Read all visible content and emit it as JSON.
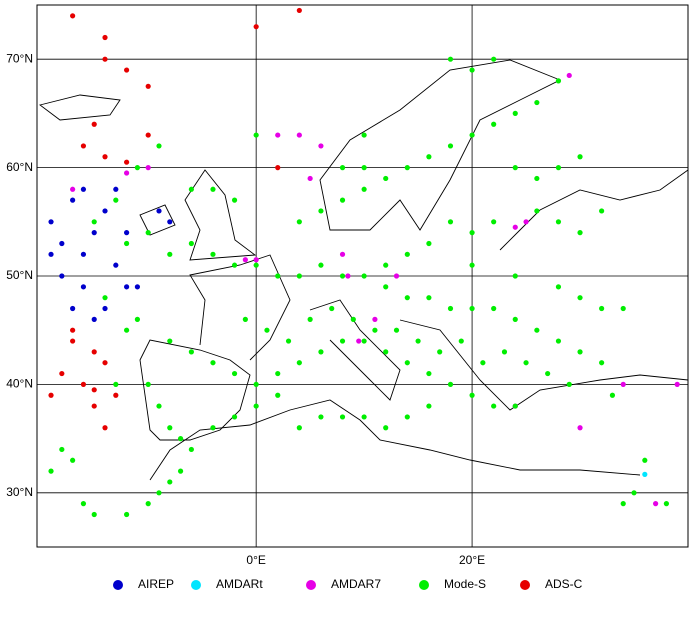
{
  "chart_data": {
    "type": "scatter",
    "xlim": [
      -20.3,
      40
    ],
    "ylim": [
      25,
      75
    ],
    "xticks": [
      {
        "value": 0,
        "label": "0°E"
      },
      {
        "value": 20,
        "label": "20°E"
      }
    ],
    "yticks": [
      {
        "value": 30,
        "label": "30°N"
      },
      {
        "value": 40,
        "label": "40°N"
      },
      {
        "value": 50,
        "label": "50°N"
      },
      {
        "value": 60,
        "label": "60°N"
      },
      {
        "value": 70,
        "label": "70°N"
      }
    ],
    "grid": true,
    "legend": "bottom",
    "series": [
      {
        "name": "AIREP",
        "color": "#0000cc",
        "x": [
          -19,
          -18,
          -17,
          -16,
          -15,
          -14,
          -13,
          -17,
          -15,
          -12,
          -19,
          -16,
          -13,
          -14,
          -11,
          -9,
          -8,
          -18,
          -16,
          -12
        ],
        "values": [
          55,
          53,
          57,
          52,
          54,
          56,
          51,
          47,
          46,
          49,
          52,
          58,
          58,
          47,
          49,
          56,
          55,
          50,
          49,
          54
        ]
      },
      {
        "name": "AMDARt",
        "color": "#00e5ff",
        "x": [
          36
        ],
        "values": [
          31.7
        ]
      },
      {
        "name": "AMDAR7",
        "color": "#e600e6",
        "x": [
          -1,
          0,
          8,
          8.5,
          13,
          24,
          25,
          29,
          24,
          9.5,
          -10,
          4,
          6,
          -17,
          -12,
          34,
          39,
          37,
          5,
          30,
          2,
          11
        ],
        "values": [
          51.5,
          51.5,
          52,
          50,
          50,
          54.5,
          55,
          68.5,
          38,
          44,
          60,
          63,
          62,
          58,
          59.5,
          40,
          40,
          29,
          59,
          36,
          63,
          46
        ]
      },
      {
        "name": "Mode-S",
        "color": "#00ee00",
        "x": [
          -15,
          -12,
          -10,
          -8,
          -6,
          -4,
          -2,
          0,
          2,
          4,
          6,
          8,
          10,
          12,
          14,
          16,
          18,
          20,
          22,
          24,
          26,
          28,
          30,
          32,
          -8,
          -6,
          -4,
          -2,
          0,
          2,
          4,
          6,
          8,
          10,
          12,
          14,
          16,
          18,
          20,
          22,
          24,
          -10,
          -9,
          -8,
          -7,
          -6,
          -7,
          -8,
          -9,
          -10,
          -12,
          -15,
          -16,
          -4,
          -2,
          0,
          2,
          4,
          6,
          8,
          10,
          12,
          14,
          16,
          4,
          6,
          8,
          10,
          12,
          14,
          16,
          18,
          20,
          22,
          24,
          26,
          28,
          18,
          20,
          22,
          10,
          0,
          -4,
          -2,
          -6,
          8,
          10,
          24,
          26,
          28,
          30,
          26,
          28,
          30,
          32,
          22,
          20,
          18,
          16,
          14,
          12,
          20,
          24,
          28,
          30,
          32,
          34,
          -1,
          1,
          3,
          5,
          7,
          9,
          11,
          13,
          15,
          17,
          19,
          21,
          23,
          25,
          27,
          29,
          33,
          36,
          35,
          34,
          38,
          -18,
          -19,
          -17,
          -13,
          -12,
          -11,
          -13,
          -11,
          -9,
          -14
        ],
        "values": [
          55,
          53,
          54,
          52,
          53,
          52,
          51,
          51,
          50,
          50,
          51,
          50,
          50,
          49,
          48,
          48,
          47,
          47,
          47,
          46,
          45,
          44,
          43,
          42,
          44,
          43,
          42,
          41,
          40,
          41,
          42,
          43,
          44,
          44,
          43,
          42,
          41,
          40,
          39,
          38,
          38,
          40,
          38,
          36,
          35,
          34,
          32,
          31,
          30,
          29,
          28,
          28,
          29,
          36,
          37,
          38,
          39,
          36,
          37,
          37,
          37,
          36,
          37,
          38,
          55,
          56,
          57,
          58,
          59,
          60,
          61,
          62,
          63,
          64,
          65,
          66,
          68,
          70,
          69,
          70,
          63,
          63,
          58,
          57,
          58,
          60,
          60,
          60,
          59,
          60,
          61,
          56,
          55,
          54,
          56,
          55,
          54,
          55,
          53,
          52,
          51,
          51,
          50,
          49,
          48,
          47,
          47,
          46,
          45,
          44,
          46,
          47,
          46,
          45,
          45,
          44,
          43,
          44,
          42,
          43,
          42,
          41,
          40,
          39,
          33,
          30,
          29,
          29,
          34,
          32,
          33,
          40,
          45,
          46,
          57,
          60,
          62,
          48
        ]
      },
      {
        "name": "ADS-C",
        "color": "#e60000",
        "x": [
          -17,
          -14,
          -14,
          -12,
          -10,
          -15,
          -16,
          -14,
          -12,
          0,
          4,
          2,
          -17,
          -15,
          -14,
          -18,
          -16,
          -19,
          -15,
          -14,
          -13,
          -17,
          -15,
          -10
        ],
        "values": [
          74,
          72,
          70,
          69,
          67.5,
          64,
          62,
          61,
          60.5,
          73,
          74.5,
          60,
          45,
          43,
          42,
          41,
          40,
          39,
          38,
          36,
          39,
          44,
          39.5,
          63
        ]
      }
    ]
  }
}
